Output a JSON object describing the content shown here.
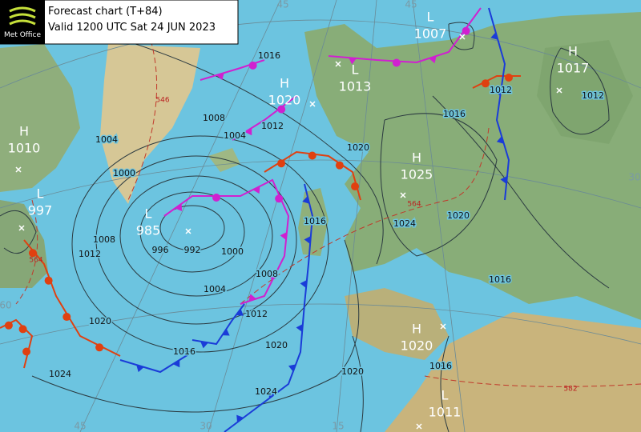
{
  "header": {
    "logo": "Met Office",
    "title": "Forecast chart (T+84)",
    "valid": "Valid 1200 UTC Sat 24 JUN 2023"
  },
  "pressure_centers": [
    {
      "type": "H",
      "value": 1010
    },
    {
      "type": "L",
      "value": 997
    },
    {
      "type": "L",
      "value": 985
    },
    {
      "type": "H",
      "value": 1020
    },
    {
      "type": "L",
      "value": 1013
    },
    {
      "type": "L",
      "value": 1007
    },
    {
      "type": "H",
      "value": 1017
    },
    {
      "type": "H",
      "value": 1025
    },
    {
      "type": "H",
      "value": 1020
    },
    {
      "type": "L",
      "value": 1011
    }
  ],
  "isobar_labels": [
    1016,
    1004,
    1008,
    1012,
    1004,
    1000,
    1008,
    1012,
    996,
    992,
    1000,
    1004,
    1008,
    1012,
    1020,
    1016,
    1020,
    1024,
    1024,
    1020,
    1016,
    1016,
    1012,
    1012,
    1024,
    1020,
    1016,
    1020,
    1016
  ],
  "thickness_labels": [
    546,
    564,
    564,
    582
  ],
  "grid_labels": [
    45,
    45,
    45,
    30,
    15,
    30,
    60
  ]
}
